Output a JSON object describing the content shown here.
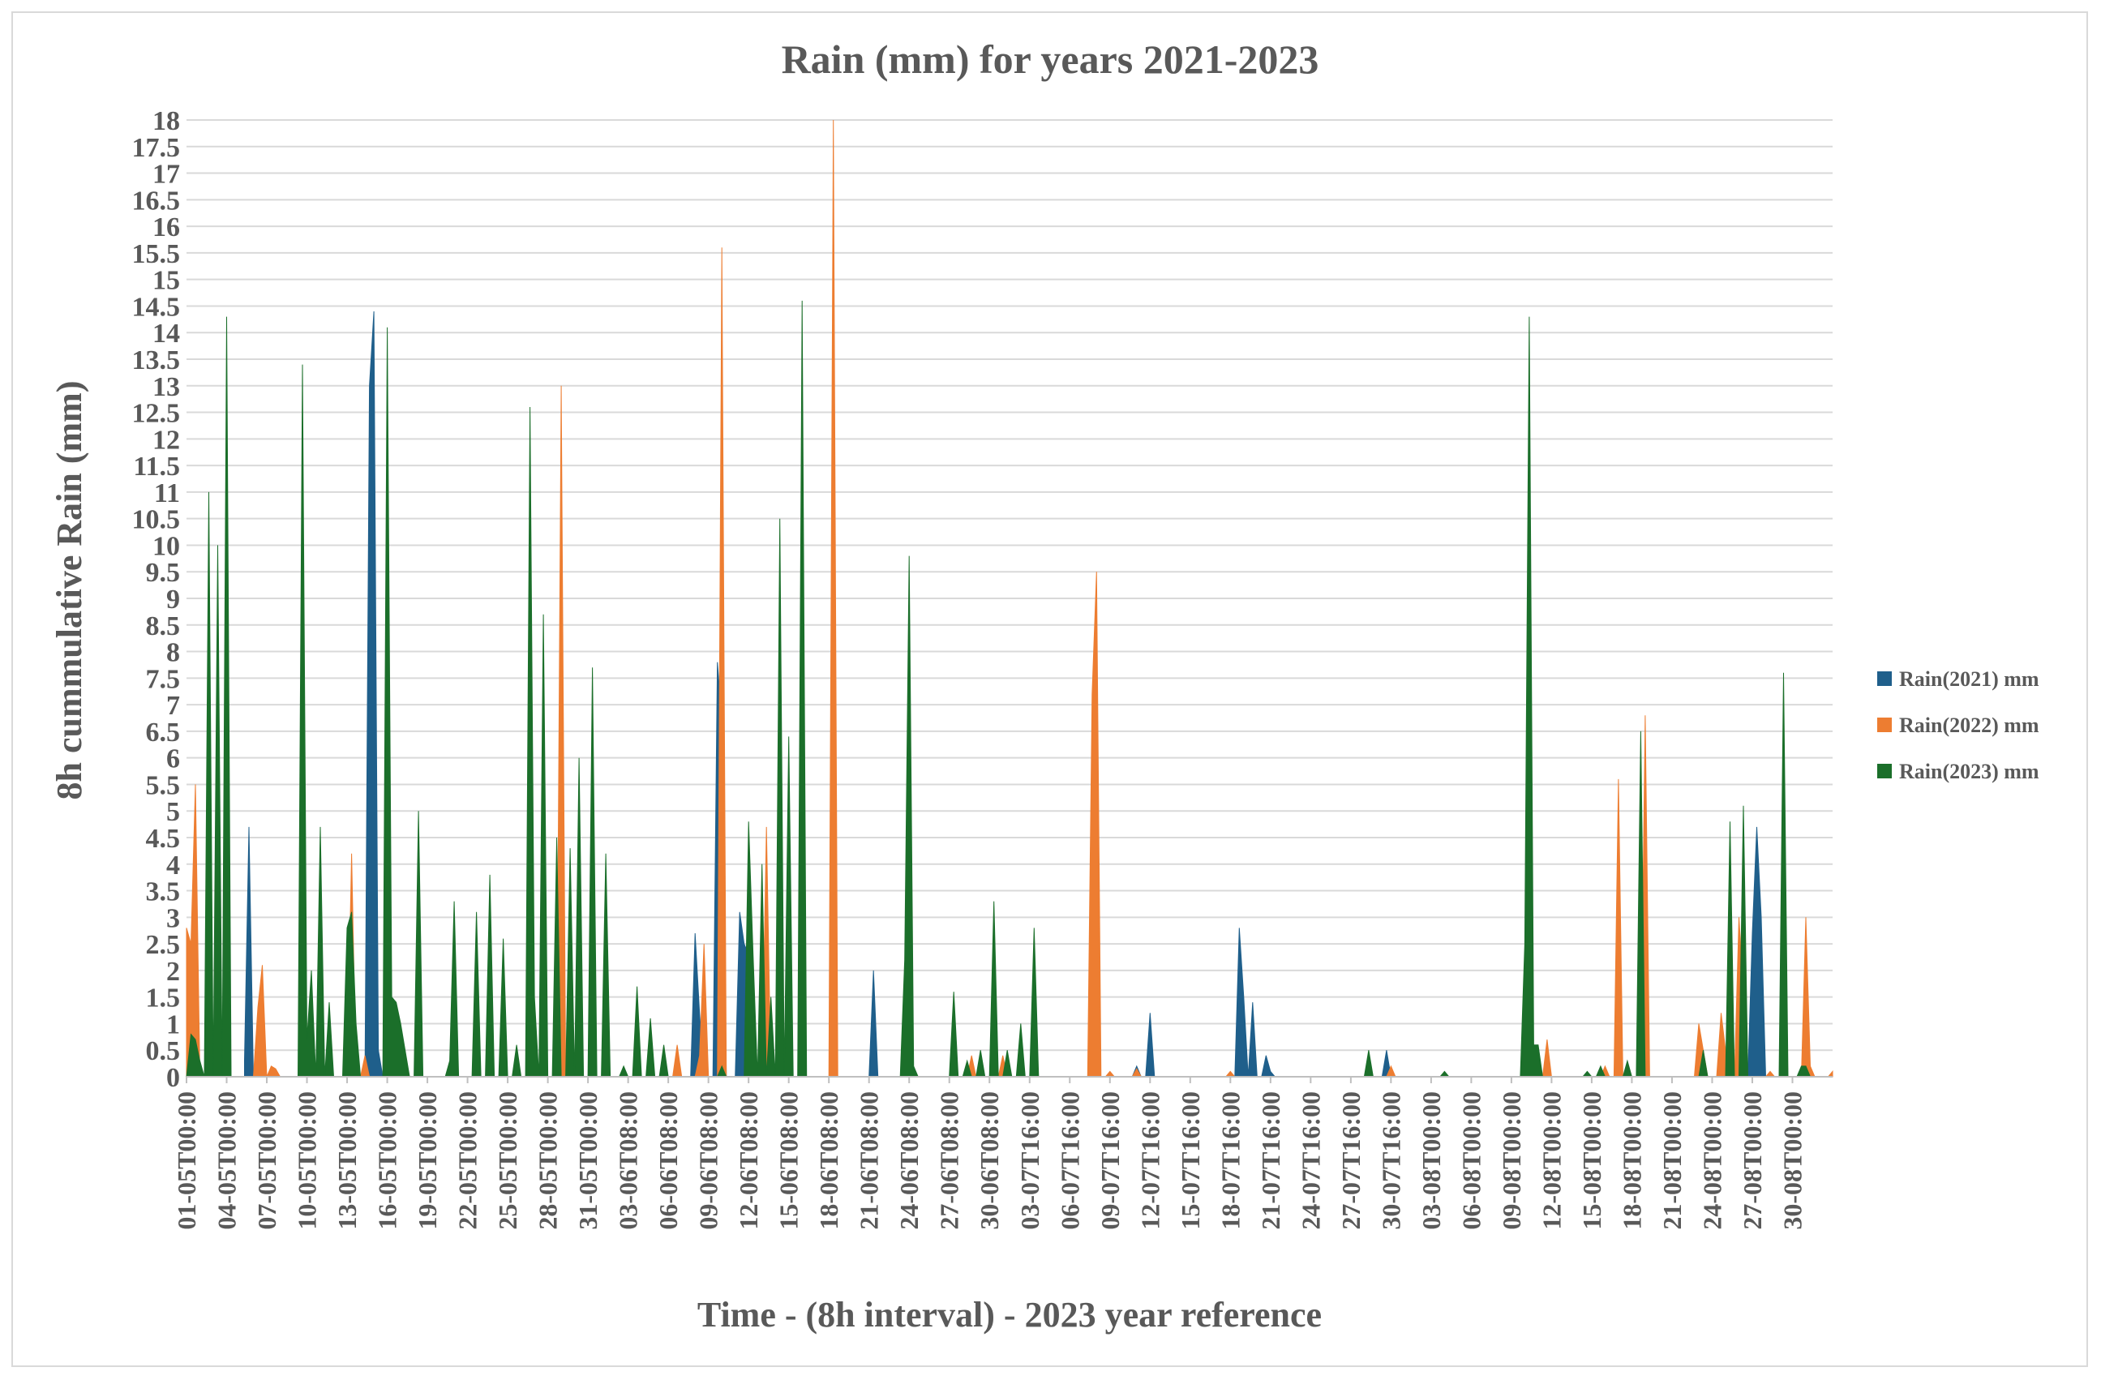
{
  "chart_data": {
    "type": "area",
    "title": "Rain (mm) for years 2021-2023",
    "xlabel": "Time - (8h interval) - 2023 year reference",
    "ylabel": "8h cummulative Rain (mm)",
    "ylim": [
      0,
      18
    ],
    "yticks": [
      "0",
      "0.5",
      "1",
      "1.5",
      "2",
      "2.5",
      "3",
      "3.5",
      "4",
      "4.5",
      "5",
      "5.5",
      "6",
      "6.5",
      "7",
      "7.5",
      "8",
      "8.5",
      "9",
      "9.5",
      "10",
      "10.5",
      "11",
      "11.5",
      "12",
      "12.5",
      "13",
      "13.5",
      "14",
      "14.5",
      "15",
      "15.5",
      "16",
      "16.5",
      "17",
      "17.5",
      "18"
    ],
    "grid": true,
    "legend_position": "right",
    "x_count": 369,
    "x_tick_labels": [
      "01-05T00:00",
      "04-05T00:00",
      "07-05T00:00",
      "10-05T00:00",
      "13-05T00:00",
      "16-05T00:00",
      "19-05T00:00",
      "22-05T00:00",
      "25-05T00:00",
      "28-05T00:00",
      "31-05T00:00",
      "03-06T08:00",
      "06-06T08:00",
      "09-06T08:00",
      "12-06T08:00",
      "15-06T08:00",
      "18-06T08:00",
      "21-06T08:00",
      "24-06T08:00",
      "27-06T08:00",
      "30-06T08:00",
      "03-07T16:00",
      "06-07T16:00",
      "09-07T16:00",
      "12-07T16:00",
      "15-07T16:00",
      "18-07T16:00",
      "21-07T16:00",
      "24-07T16:00",
      "27-07T16:00",
      "30-07T16:00",
      "03-08T00:00",
      "06-08T00:00",
      "09-08T00:00",
      "12-08T00:00",
      "15-08T00:00",
      "18-08T00:00",
      "21-08T00:00",
      "24-08T00:00",
      "27-08T00:00",
      "30-08T00:00"
    ],
    "series": [
      {
        "name": "Rain(2021) mm",
        "color": "#1f5f8b",
        "points": [
          [
            13,
            0.3
          ],
          [
            14,
            4.7
          ],
          [
            15,
            0
          ],
          [
            18,
            0
          ],
          [
            40,
            0
          ],
          [
            41,
            13
          ],
          [
            42,
            14.4
          ],
          [
            43,
            0.5
          ],
          [
            44,
            0
          ],
          [
            109,
            0
          ],
          [
            110,
            0.3
          ],
          [
            111,
            0
          ],
          [
            113,
            0
          ],
          [
            114,
            2.7
          ],
          [
            115,
            1.2
          ],
          [
            116,
            0
          ],
          [
            118,
            0
          ],
          [
            119,
            7.8
          ],
          [
            120,
            6.7
          ],
          [
            121,
            0
          ],
          [
            123,
            0
          ],
          [
            124,
            3.1
          ],
          [
            125,
            2.5
          ],
          [
            126,
            2.3
          ],
          [
            127,
            0
          ],
          [
            153,
            0
          ],
          [
            154,
            2
          ],
          [
            155,
            0
          ],
          [
            212,
            0
          ],
          [
            213,
            0.2
          ],
          [
            214,
            0
          ],
          [
            215,
            0
          ],
          [
            216,
            1.2
          ],
          [
            217,
            0
          ],
          [
            235,
            0
          ],
          [
            236,
            2.8
          ],
          [
            237,
            1.5
          ],
          [
            238,
            0
          ],
          [
            239,
            1.4
          ],
          [
            240,
            0
          ],
          [
            241,
            0
          ],
          [
            242,
            0.4
          ],
          [
            243,
            0.1
          ],
          [
            244,
            0
          ],
          [
            268,
            0
          ],
          [
            269,
            0.5
          ],
          [
            270,
            0
          ],
          [
            350,
            0
          ],
          [
            351,
            2.7
          ],
          [
            352,
            4.7
          ],
          [
            353,
            3
          ],
          [
            354,
            0
          ],
          [
            369,
            0
          ]
        ]
      },
      {
        "name": "Rain(2022) mm",
        "color": "#ed7d31",
        "points": [
          [
            0,
            2.8
          ],
          [
            1,
            2.5
          ],
          [
            2,
            5.5
          ],
          [
            3,
            0
          ],
          [
            15,
            0
          ],
          [
            16,
            1.3
          ],
          [
            17,
            2.1
          ],
          [
            18,
            0
          ],
          [
            19,
            0.2
          ],
          [
            20,
            0.15
          ],
          [
            21,
            0
          ],
          [
            36,
            0
          ],
          [
            37,
            4.2
          ],
          [
            38,
            0
          ],
          [
            39,
            0
          ],
          [
            40,
            0.4
          ],
          [
            41,
            0
          ],
          [
            83,
            0
          ],
          [
            84,
            13
          ],
          [
            85,
            0
          ],
          [
            109,
            0
          ],
          [
            110,
            0.6
          ],
          [
            111,
            0
          ],
          [
            114,
            0
          ],
          [
            115,
            0.4
          ],
          [
            116,
            2.5
          ],
          [
            117,
            0
          ],
          [
            119,
            0
          ],
          [
            120,
            15.6
          ],
          [
            121,
            0
          ],
          [
            129,
            0
          ],
          [
            130,
            4.7
          ],
          [
            131,
            0
          ],
          [
            144,
            0
          ],
          [
            145,
            18
          ],
          [
            146,
            0
          ],
          [
            175,
            0
          ],
          [
            176,
            0.4
          ],
          [
            177,
            0
          ],
          [
            182,
            0
          ],
          [
            183,
            0.4
          ],
          [
            184,
            0
          ],
          [
            202,
            0
          ],
          [
            203,
            7.2
          ],
          [
            204,
            9.5
          ],
          [
            205,
            0
          ],
          [
            206,
            0
          ],
          [
            207,
            0.1
          ],
          [
            208,
            0
          ],
          [
            212,
            0
          ],
          [
            213,
            0.15
          ],
          [
            214,
            0
          ],
          [
            233,
            0
          ],
          [
            234,
            0.1
          ],
          [
            235,
            0
          ],
          [
            269,
            0
          ],
          [
            270,
            0.2
          ],
          [
            271,
            0
          ],
          [
            304,
            0
          ],
          [
            305,
            0.7
          ],
          [
            306,
            0
          ],
          [
            317,
            0
          ],
          [
            318,
            0.2
          ],
          [
            319,
            0
          ],
          [
            320,
            0
          ],
          [
            321,
            5.6
          ],
          [
            322,
            0
          ],
          [
            326,
            0
          ],
          [
            327,
            6.8
          ],
          [
            328,
            0
          ],
          [
            338,
            0
          ],
          [
            339,
            1
          ],
          [
            340,
            0.5
          ],
          [
            341,
            0
          ],
          [
            343,
            0
          ],
          [
            344,
            1.2
          ],
          [
            345,
            0.5
          ],
          [
            346,
            0
          ],
          [
            347,
            0
          ],
          [
            348,
            3
          ],
          [
            349,
            1.6
          ],
          [
            350,
            0
          ],
          [
            354,
            0
          ],
          [
            355,
            0.1
          ],
          [
            356,
            0
          ],
          [
            362,
            0
          ],
          [
            363,
            3
          ],
          [
            364,
            0.2
          ],
          [
            365,
            0
          ],
          [
            368,
            0
          ],
          [
            369,
            0.1
          ]
        ]
      },
      {
        "name": "Rain(2023) mm",
        "color": "#1b6f2a",
        "points": [
          [
            0,
            0
          ],
          [
            1,
            0.8
          ],
          [
            2,
            0.7
          ],
          [
            3,
            0.3
          ],
          [
            4,
            0
          ],
          [
            5,
            11
          ],
          [
            6,
            0
          ],
          [
            7,
            10
          ],
          [
            8,
            0
          ],
          [
            9,
            14.3
          ],
          [
            10,
            0
          ],
          [
            25,
            0
          ],
          [
            26,
            13.4
          ],
          [
            27,
            0.7
          ],
          [
            28,
            2
          ],
          [
            29,
            0
          ],
          [
            30,
            4.7
          ],
          [
            31,
            0
          ],
          [
            32,
            1.4
          ],
          [
            33,
            0
          ],
          [
            35,
            0
          ],
          [
            36,
            2.8
          ],
          [
            37,
            3.1
          ],
          [
            38,
            1
          ],
          [
            39,
            0
          ],
          [
            44,
            0
          ],
          [
            45,
            14.1
          ],
          [
            46,
            1.5
          ],
          [
            47,
            1.4
          ],
          [
            48,
            1
          ],
          [
            49,
            0.5
          ],
          [
            50,
            0
          ],
          [
            51,
            0
          ],
          [
            52,
            5
          ],
          [
            53,
            0
          ],
          [
            58,
            0
          ],
          [
            59,
            0.3
          ],
          [
            60,
            3.3
          ],
          [
            61,
            0
          ],
          [
            64,
            0
          ],
          [
            65,
            3.1
          ],
          [
            66,
            0
          ],
          [
            67,
            0
          ],
          [
            68,
            3.8
          ],
          [
            69,
            0
          ],
          [
            70,
            0
          ],
          [
            71,
            2.6
          ],
          [
            72,
            0
          ],
          [
            73,
            0
          ],
          [
            74,
            0.6
          ],
          [
            75,
            0
          ],
          [
            76,
            0
          ],
          [
            77,
            12.6
          ],
          [
            78,
            1.5
          ],
          [
            79,
            0
          ],
          [
            80,
            8.7
          ],
          [
            81,
            0
          ],
          [
            82,
            0
          ],
          [
            83,
            4.5
          ],
          [
            84,
            0
          ],
          [
            85,
            0
          ],
          [
            86,
            4.3
          ],
          [
            87,
            0
          ],
          [
            88,
            6
          ],
          [
            89,
            0
          ],
          [
            90,
            0
          ],
          [
            91,
            7.7
          ],
          [
            92,
            0
          ],
          [
            93,
            0
          ],
          [
            94,
            4.2
          ],
          [
            95,
            0
          ],
          [
            97,
            0
          ],
          [
            98,
            0.2
          ],
          [
            99,
            0
          ],
          [
            100,
            0
          ],
          [
            101,
            1.7
          ],
          [
            102,
            0
          ],
          [
            103,
            0
          ],
          [
            104,
            1.1
          ],
          [
            105,
            0
          ],
          [
            106,
            0
          ],
          [
            107,
            0.6
          ],
          [
            108,
            0
          ],
          [
            119,
            0
          ],
          [
            120,
            0.2
          ],
          [
            121,
            0
          ],
          [
            125,
            0
          ],
          [
            126,
            4.8
          ],
          [
            127,
            2.3
          ],
          [
            128,
            0
          ],
          [
            129,
            4
          ],
          [
            130,
            0
          ],
          [
            131,
            1.5
          ],
          [
            132,
            0
          ],
          [
            133,
            10.5
          ],
          [
            134,
            0
          ],
          [
            135,
            6.4
          ],
          [
            136,
            0
          ],
          [
            137,
            0
          ],
          [
            138,
            14.6
          ],
          [
            139,
            0
          ],
          [
            160,
            0
          ],
          [
            161,
            2.2
          ],
          [
            162,
            9.8
          ],
          [
            163,
            0.2
          ],
          [
            164,
            0
          ],
          [
            171,
            0
          ],
          [
            172,
            1.6
          ],
          [
            173,
            0
          ],
          [
            174,
            0
          ],
          [
            175,
            0.3
          ],
          [
            176,
            0
          ],
          [
            177,
            0
          ],
          [
            178,
            0.5
          ],
          [
            179,
            0
          ],
          [
            180,
            0
          ],
          [
            181,
            3.3
          ],
          [
            182,
            0
          ],
          [
            183,
            0
          ],
          [
            184,
            0.5
          ],
          [
            185,
            0
          ],
          [
            186,
            0
          ],
          [
            187,
            1
          ],
          [
            188,
            0
          ],
          [
            189,
            0
          ],
          [
            190,
            2.8
          ],
          [
            191,
            0
          ],
          [
            264,
            0
          ],
          [
            265,
            0.5
          ],
          [
            266,
            0
          ],
          [
            281,
            0
          ],
          [
            282,
            0.1
          ],
          [
            283,
            0
          ],
          [
            299,
            0
          ],
          [
            300,
            2.5
          ],
          [
            301,
            14.3
          ],
          [
            302,
            0.6
          ],
          [
            303,
            0.6
          ],
          [
            304,
            0
          ],
          [
            313,
            0
          ],
          [
            314,
            0.1
          ],
          [
            315,
            0
          ],
          [
            316,
            0
          ],
          [
            317,
            0.2
          ],
          [
            318,
            0
          ],
          [
            322,
            0
          ],
          [
            323,
            0.3
          ],
          [
            324,
            0
          ],
          [
            325,
            0
          ],
          [
            326,
            6.5
          ],
          [
            327,
            0
          ],
          [
            339,
            0
          ],
          [
            340,
            0.5
          ],
          [
            341,
            0
          ],
          [
            345,
            0
          ],
          [
            346,
            4.8
          ],
          [
            347,
            0
          ],
          [
            348,
            0
          ],
          [
            349,
            5.1
          ],
          [
            350,
            0
          ],
          [
            357,
            0
          ],
          [
            358,
            7.6
          ],
          [
            359,
            0
          ],
          [
            361,
            0
          ],
          [
            362,
            0.2
          ],
          [
            363,
            0.2
          ],
          [
            364,
            0
          ]
        ]
      }
    ]
  }
}
